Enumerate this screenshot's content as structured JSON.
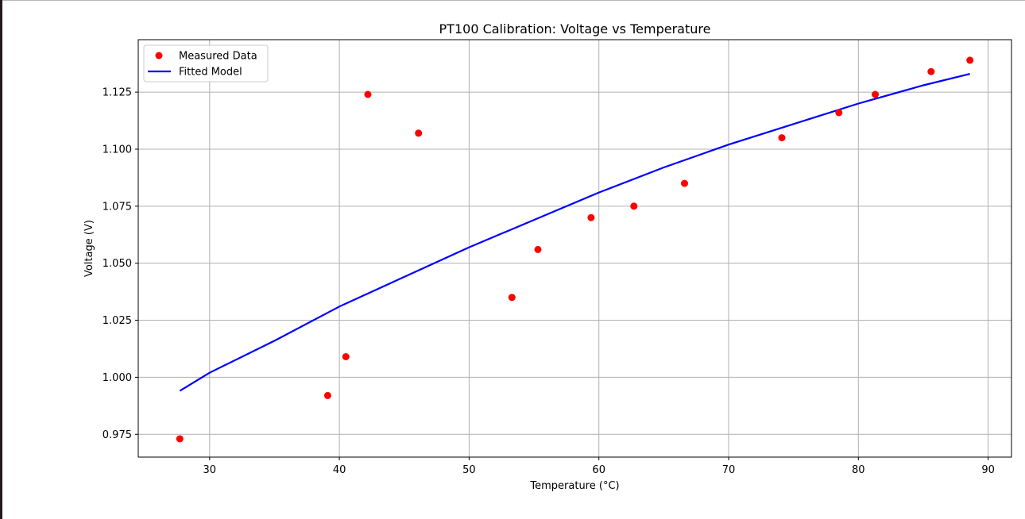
{
  "chart_data": {
    "type": "scatter",
    "title": "PT100 Calibration: Voltage vs Temperature",
    "xlabel": "Temperature (°C)",
    "ylabel": "Voltage (V)",
    "xlim": [
      24.5,
      91.8
    ],
    "ylim": [
      0.965,
      1.148
    ],
    "xticks": [
      30,
      40,
      50,
      60,
      70,
      80,
      90
    ],
    "xtick_labels": [
      "30",
      "40",
      "50",
      "60",
      "70",
      "80",
      "90"
    ],
    "yticks": [
      0.975,
      1.0,
      1.025,
      1.05,
      1.075,
      1.1,
      1.125
    ],
    "ytick_labels": [
      "0.975",
      "1.000",
      "1.025",
      "1.050",
      "1.075",
      "1.100",
      "1.125"
    ],
    "grid": true,
    "legend_position": "top-left",
    "series": [
      {
        "name": "Measured Data",
        "kind": "scatter",
        "color": "#ff0000",
        "x": [
          27.7,
          39.1,
          40.5,
          42.2,
          46.1,
          53.3,
          55.3,
          59.4,
          62.7,
          66.6,
          74.1,
          78.5,
          81.3,
          85.6,
          88.6
        ],
        "y": [
          0.973,
          0.992,
          1.009,
          1.124,
          1.107,
          1.035,
          1.056,
          1.07,
          1.075,
          1.085,
          1.105,
          1.116,
          1.124,
          1.134,
          1.139
        ]
      },
      {
        "name": "Fitted Model",
        "kind": "line",
        "color": "#0000ff",
        "x": [
          27.7,
          30,
          35,
          40,
          45,
          50,
          55,
          60,
          65,
          70,
          75,
          80,
          85,
          88.6
        ],
        "y": [
          0.994,
          1.002,
          1.016,
          1.031,
          1.044,
          1.057,
          1.069,
          1.081,
          1.092,
          1.102,
          1.111,
          1.12,
          1.128,
          1.133
        ]
      }
    ]
  }
}
